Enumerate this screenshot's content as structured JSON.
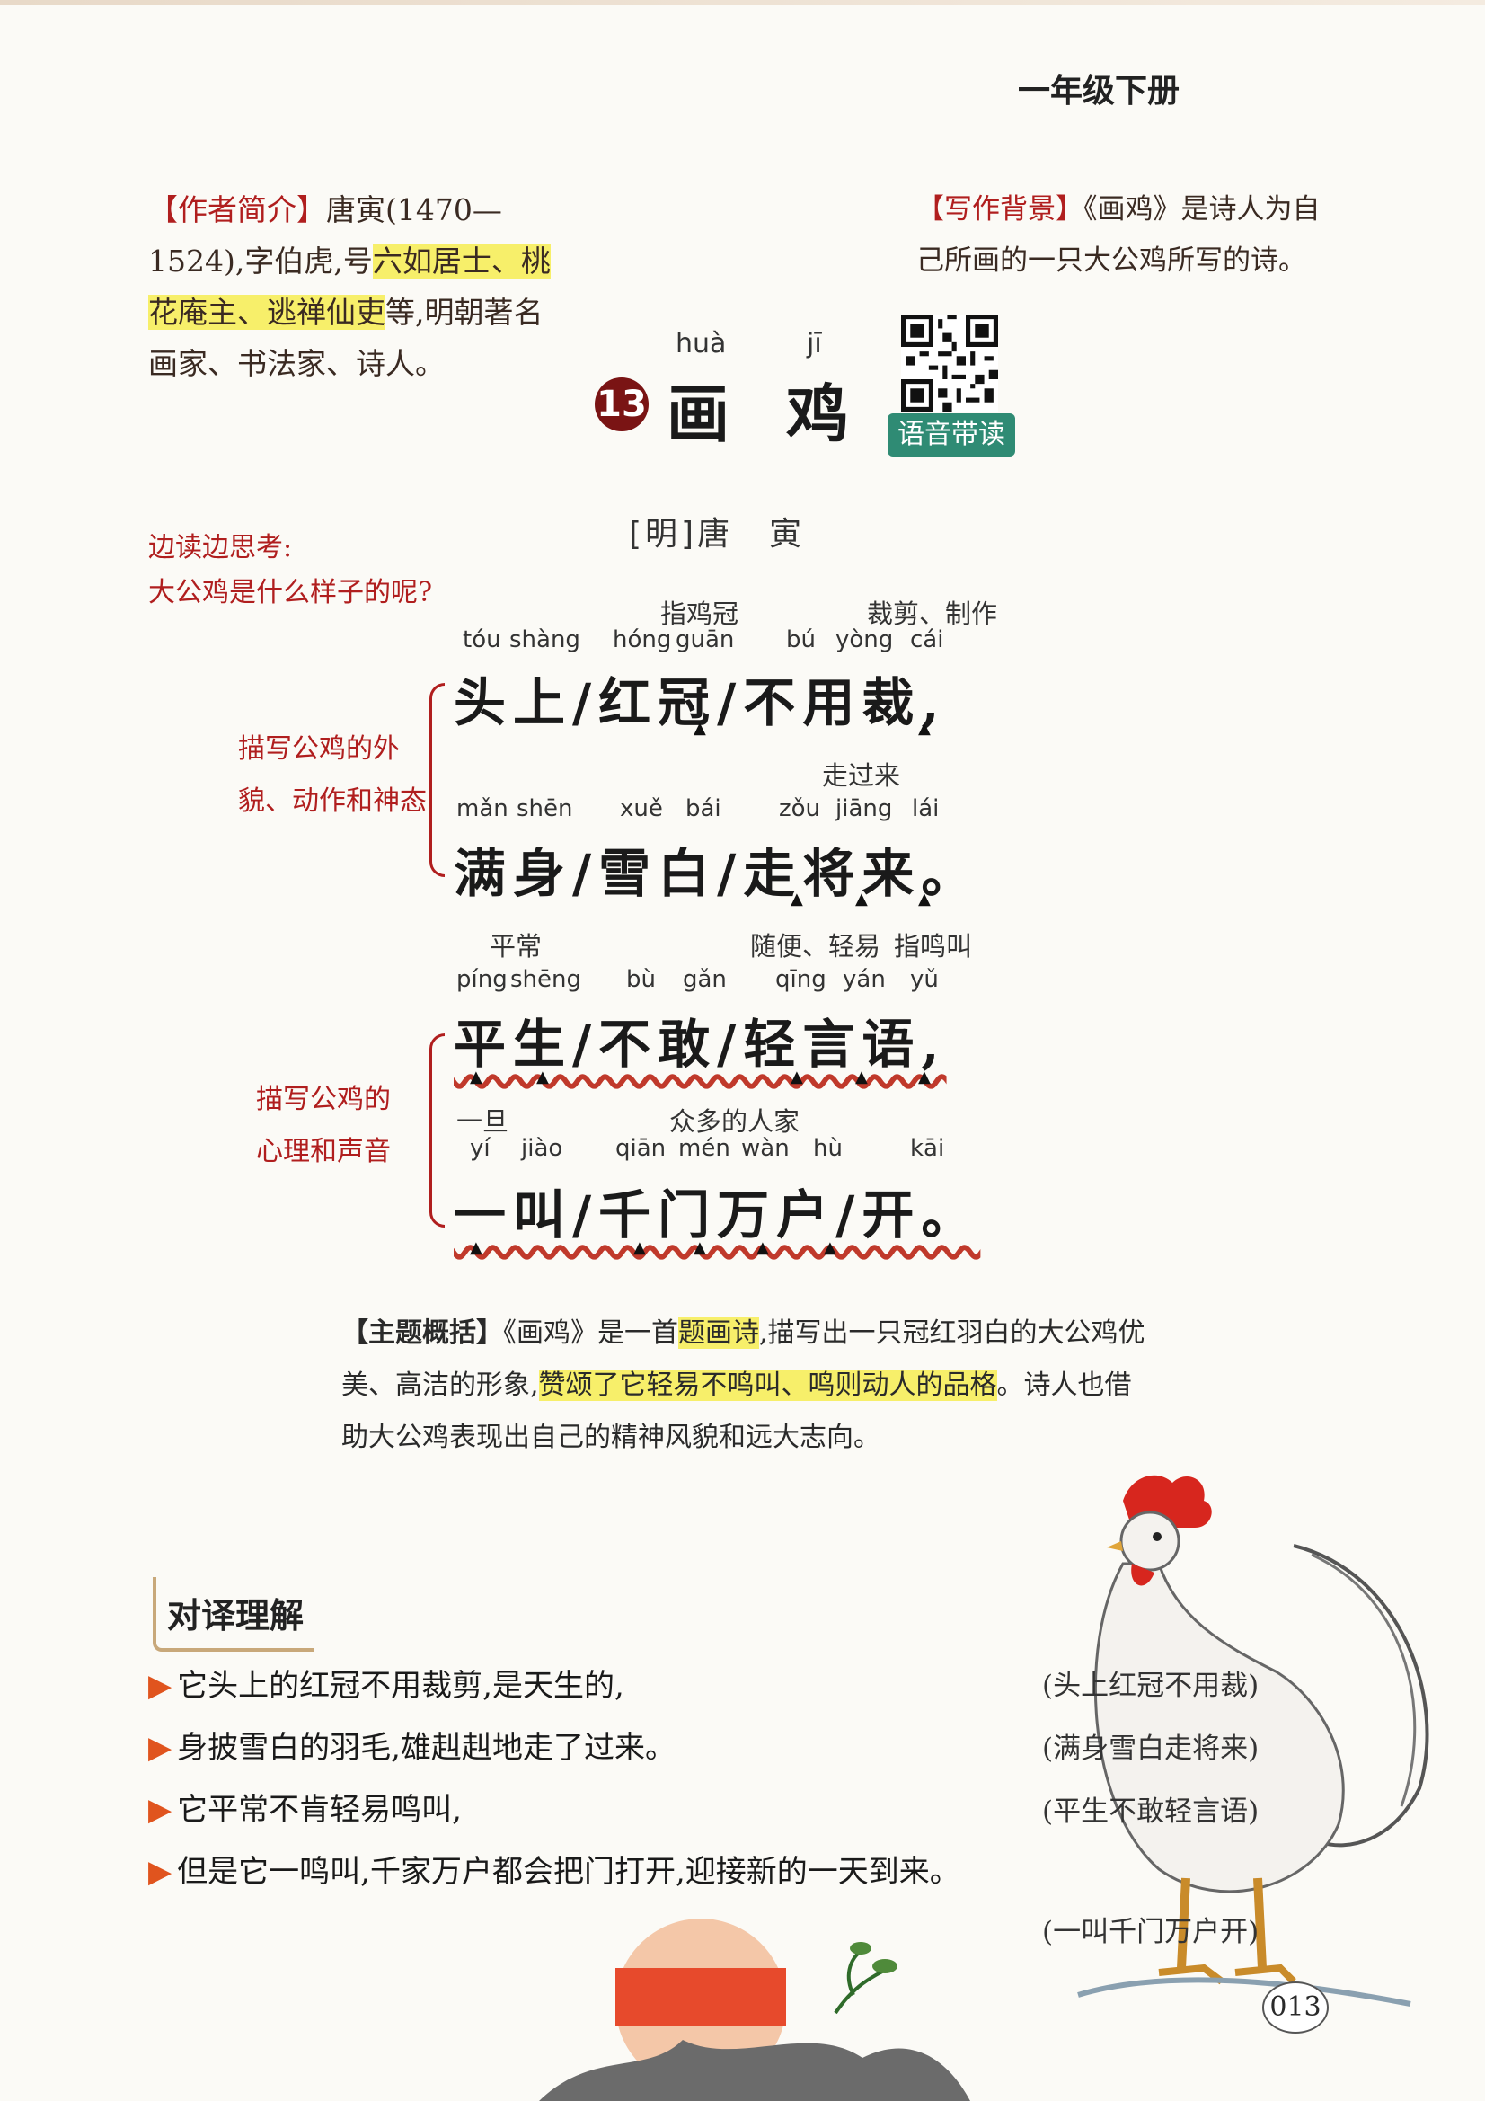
{
  "header": {
    "grade": "一年级下册"
  },
  "intro": {
    "tag": "【作者简介】",
    "text_a": "唐寅(1470—1524),字伯虎,号",
    "highlight": "六如居士、桃花庵主、逃禅仙吏",
    "text_b": "等,明朝著名画家、书法家、诗人。"
  },
  "background": {
    "tag": "【写作背景】",
    "text": "《画鸡》是诗人为自己所画的一只大公鸡所写的诗。"
  },
  "title": {
    "number": "13",
    "pinyin_1": "huà",
    "char_1": "画",
    "pinyin_2": "jī",
    "char_2": "鸡",
    "audio_label": "语音带读"
  },
  "author_line": "[明]唐　寅",
  "think": {
    "line1": "边读边思考:",
    "line2": "大公鸡是什么样子的呢?"
  },
  "poem": [
    {
      "notes": [
        "指鸡冠",
        "裁剪、制作"
      ],
      "pinyin": [
        "tóu",
        "shàng",
        "hóng",
        "guān",
        "bú",
        "yòng",
        "cái"
      ],
      "text": "头上/红冠/不用裁,"
    },
    {
      "notes": [
        "走过来"
      ],
      "pinyin": [
        "mǎn",
        "shēn",
        "xuě",
        "bái",
        "zǒu",
        "jiāng",
        "lái"
      ],
      "text": "满身/雪白/走将来。"
    },
    {
      "notes": [
        "平常",
        "随便、轻易",
        "指鸣叫"
      ],
      "pinyin": [
        "píng",
        "shēng",
        "bù",
        "gǎn",
        "qīng",
        "yán",
        "yǔ"
      ],
      "text": "平生/不敢/轻言语,"
    },
    {
      "notes": [
        "一旦",
        "众多的人家"
      ],
      "pinyin": [
        "yí",
        "jiào",
        "qiān",
        "mén",
        "wàn",
        "hù",
        "kāi"
      ],
      "text": "一叫/千门万户/开。"
    }
  ],
  "side_notes": {
    "group1": [
      "描写公鸡的外",
      "貌、动作和神态"
    ],
    "group2": [
      "描写公鸡的",
      "心理和声音"
    ]
  },
  "summary": {
    "tag": "【主题概括】",
    "text_a": "《画鸡》是一首",
    "hl_1": "题画诗",
    "text_b": ",描写出一只冠红羽白的大公鸡优美、高洁的形象,",
    "hl_2": "赞颂了它轻易不鸣叫、鸣则动人的品格",
    "text_c": "。诗人也借助大公鸡表现出自己的精神风貌和远大志向。"
  },
  "section_label": "对译理解",
  "translations": [
    {
      "modern": "它头上的红冠不用裁剪,是天生的,",
      "original": "(头上红冠不用裁)"
    },
    {
      "modern": "身披雪白的羽毛,雄赳赳地走了过来。",
      "original": "(满身雪白走将来)"
    },
    {
      "modern": "它平常不肯轻易鸣叫,",
      "original": "(平生不敢轻言语)"
    },
    {
      "modern": "但是它一鸣叫,千家万户都会把门打开,迎接新的一天到来。",
      "original": "(一叫千门万户开)"
    }
  ],
  "page_number": "013",
  "colors": {
    "accent_red": "#b01e1e",
    "highlight_yellow": "#f7ef6a",
    "audio_green": "#2f8b74"
  }
}
